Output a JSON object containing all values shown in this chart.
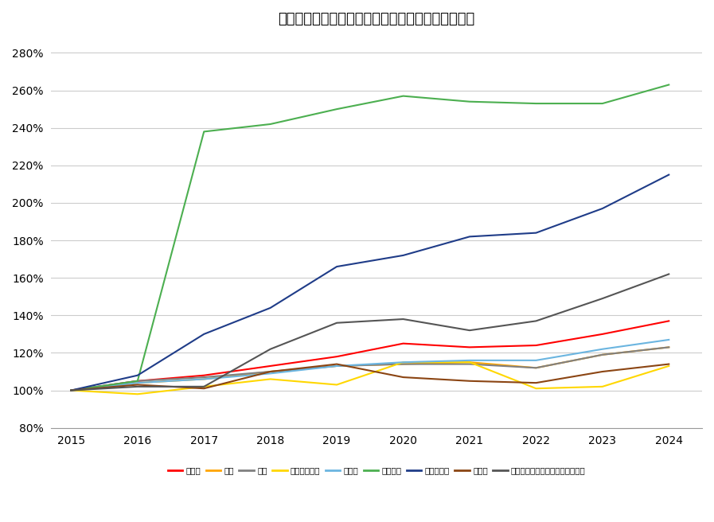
{
  "title": "セコム　通信費・販売費及び一般管理費　初年度比",
  "years": [
    2015,
    2016,
    2017,
    2018,
    2019,
    2020,
    2021,
    2022,
    2023,
    2024
  ],
  "series": [
    {
      "label": "売上高",
      "color": "#FF0000",
      "values": [
        1.0,
        1.05,
        1.08,
        1.13,
        1.18,
        1.25,
        1.23,
        1.24,
        1.3,
        1.37
      ]
    },
    {
      "label": "給与",
      "color": "#FFA500",
      "values": [
        1.0,
        1.04,
        1.06,
        1.1,
        1.13,
        1.14,
        1.15,
        1.12,
        1.19,
        1.23
      ]
    },
    {
      "label": "賞与",
      "color": "#808080",
      "values": [
        1.0,
        1.05,
        1.07,
        1.1,
        1.13,
        1.14,
        1.14,
        1.12,
        1.19,
        1.23
      ]
    },
    {
      "label": "その他人件費",
      "color": "#FFD700",
      "values": [
        1.0,
        0.98,
        1.02,
        1.06,
        1.03,
        1.15,
        1.15,
        1.01,
        1.02,
        1.13
      ]
    },
    {
      "label": "賊借料",
      "color": "#6BB5E0",
      "values": [
        1.0,
        1.04,
        1.06,
        1.09,
        1.13,
        1.15,
        1.16,
        1.16,
        1.22,
        1.27
      ]
    },
    {
      "label": "租税公課",
      "color": "#4CAF50",
      "values": [
        1.0,
        1.05,
        2.38,
        2.42,
        2.5,
        2.57,
        2.54,
        2.53,
        2.53,
        2.63
      ]
    },
    {
      "label": "減価償却費",
      "color": "#1F3C88",
      "values": [
        1.0,
        1.08,
        1.3,
        1.44,
        1.66,
        1.72,
        1.82,
        1.84,
        1.97,
        2.15
      ]
    },
    {
      "label": "通信費",
      "color": "#8B4513",
      "values": [
        1.0,
        1.03,
        1.01,
        1.1,
        1.14,
        1.07,
        1.05,
        1.04,
        1.1,
        1.14
      ]
    },
    {
      "label": "その他の販売費および一般管理費",
      "color": "#555555",
      "values": [
        1.0,
        1.02,
        1.02,
        1.22,
        1.36,
        1.38,
        1.32,
        1.37,
        1.49,
        1.62
      ]
    }
  ],
  "ylim": [
    0.8,
    2.9
  ],
  "yticks": [
    0.8,
    1.0,
    1.2,
    1.4,
    1.6,
    1.8,
    2.0,
    2.2,
    2.4,
    2.6,
    2.8
  ],
  "ytick_labels": [
    "80%",
    "100%",
    "120%",
    "140%",
    "160%",
    "180%",
    "200%",
    "220%",
    "240%",
    "260%",
    "280%"
  ],
  "background_color": "#FFFFFF",
  "grid_color": "#CCCCCC",
  "title_fontsize": 13
}
